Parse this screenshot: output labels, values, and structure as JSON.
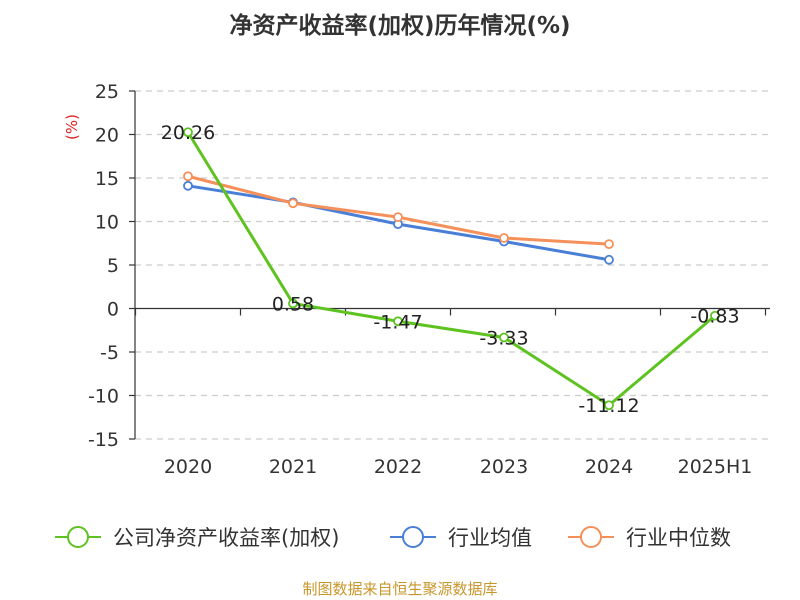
{
  "title": "净资产收益率(加权)历年情况(%)",
  "source": "制图数据来自恒生聚源数据库",
  "chart_data": {
    "type": "line",
    "title": "净资产收益率(加权)历年情况(%)",
    "ylabel": "(%)",
    "xlabel": "",
    "categories": [
      "2020",
      "2021",
      "2022",
      "2023",
      "2024",
      "2025H1"
    ],
    "ylim": [
      -15,
      25
    ],
    "yticks": [
      -15,
      -10,
      -5,
      0,
      5,
      10,
      15,
      20,
      25
    ],
    "grid": true,
    "legend_position": "bottom",
    "series": [
      {
        "name": "公司净资产收益率(加权)",
        "color": "#5ec320",
        "values": [
          20.26,
          0.58,
          -1.47,
          -3.33,
          -11.12,
          -0.83
        ],
        "labels": [
          "20.26",
          "0.58",
          "-1.47",
          "-3.33",
          "-11.12",
          "-0.83"
        ]
      },
      {
        "name": "行业均值",
        "color": "#4a7fd8",
        "values": [
          14.1,
          12.2,
          9.7,
          7.7,
          5.6,
          null
        ]
      },
      {
        "name": "行业中位数",
        "color": "#f5905a",
        "values": [
          15.2,
          12.1,
          10.5,
          8.1,
          7.4,
          null
        ]
      }
    ]
  }
}
